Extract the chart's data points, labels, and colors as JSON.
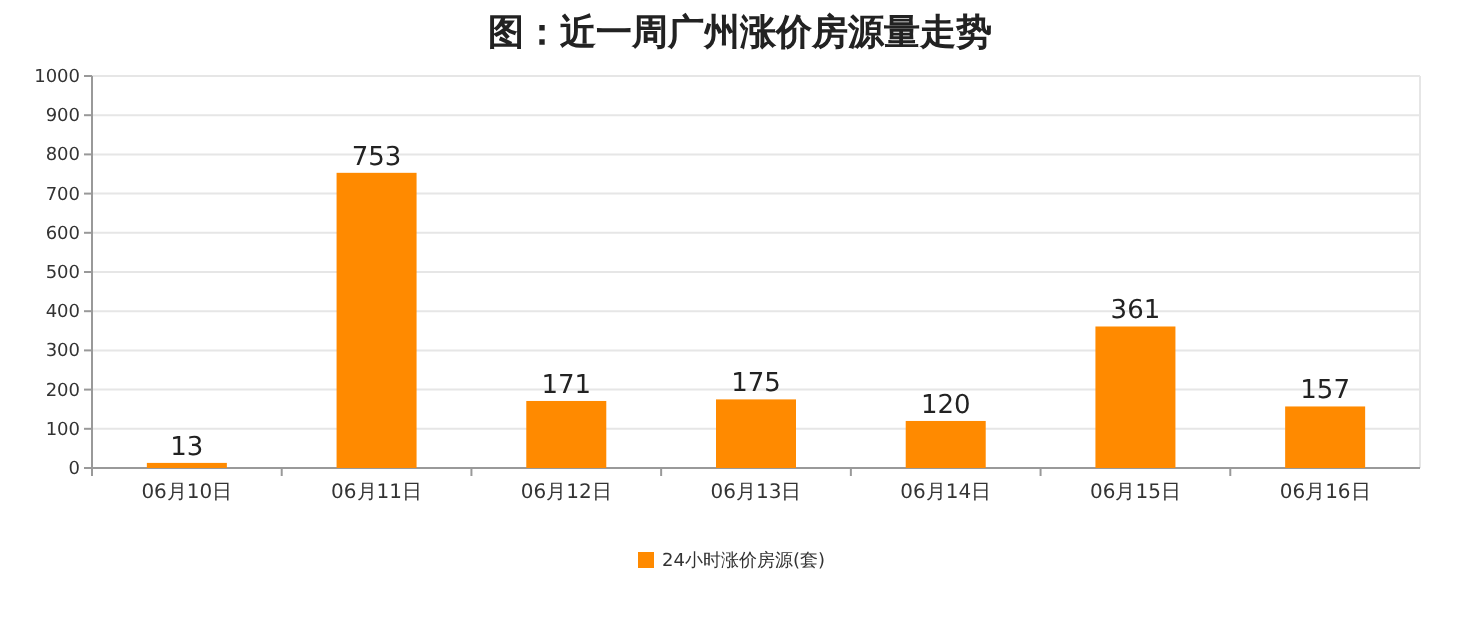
{
  "chart_data": {
    "type": "bar",
    "title": "图：近一周广州涨价房源量走势",
    "categories": [
      "06月10日",
      "06月11日",
      "06月12日",
      "06月13日",
      "06月14日",
      "06月15日",
      "06月16日"
    ],
    "series": [
      {
        "name": "24小时涨价房源(套)",
        "color": "#ff8a00",
        "values": [
          13,
          753,
          171,
          175,
          120,
          361,
          157
        ]
      }
    ],
    "ylim": [
      0,
      1000
    ],
    "yticks": [
      0,
      100,
      200,
      300,
      400,
      500,
      600,
      700,
      800,
      900,
      1000
    ],
    "grid": "y",
    "legend": "bottom",
    "data_labels": true
  }
}
